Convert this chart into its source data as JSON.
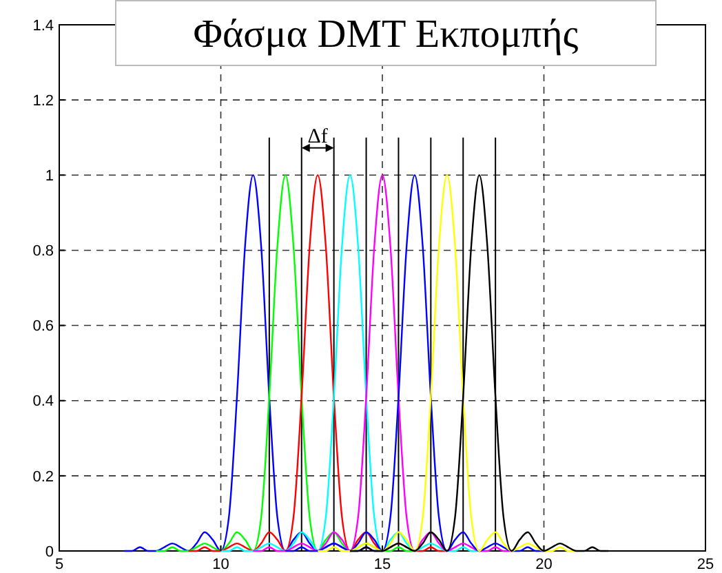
{
  "chart_data": {
    "type": "line",
    "title": "Φάσμα DMT Εκπομπής",
    "xlim": [
      5,
      25
    ],
    "ylim": [
      0,
      1.4
    ],
    "xticks": [
      5,
      10,
      15,
      20,
      25
    ],
    "yticks": [
      0,
      0.2,
      0.4,
      0.6,
      0.8,
      1,
      1.2,
      1.4
    ],
    "grid": true,
    "line_style": "solid",
    "marker": "none",
    "annotations": [
      "Δf"
    ],
    "series": [
      {
        "color": "#0000ff",
        "x": [
          7,
          7.25,
          7.5,
          7.75,
          8,
          8.25,
          8.5,
          8.75,
          9,
          9.25,
          9.5,
          9.75,
          10,
          10.25,
          10.5,
          10.75,
          11,
          11.25,
          11.5,
          11.75,
          12,
          12.25,
          12.5,
          12.75,
          13,
          13.25,
          13.5,
          13.75,
          14,
          14.25,
          14.5,
          14.75,
          15
        ],
        "values": [
          0,
          0,
          0.01,
          0,
          0,
          0.01,
          0.02,
          0.01,
          0,
          0.02,
          0.05,
          0.03,
          0,
          0.09,
          0.41,
          0.81,
          1,
          0.81,
          0.41,
          0.09,
          0,
          0.03,
          0.05,
          0.02,
          0,
          0.01,
          0.02,
          0.01,
          0,
          0,
          0.01,
          0,
          0
        ]
      },
      {
        "color": "#00ff00",
        "x": [
          8,
          8.25,
          8.5,
          8.75,
          9,
          9.25,
          9.5,
          9.75,
          10,
          10.25,
          10.5,
          10.75,
          11,
          11.25,
          11.5,
          11.75,
          12,
          12.25,
          12.5,
          12.75,
          13,
          13.25,
          13.5,
          13.75,
          14,
          14.25,
          14.5,
          14.75,
          15,
          15.25,
          15.5,
          15.75,
          16
        ],
        "values": [
          0,
          0,
          0.01,
          0,
          0,
          0.01,
          0.02,
          0.01,
          0,
          0.02,
          0.05,
          0.03,
          0,
          0.09,
          0.41,
          0.81,
          1,
          0.81,
          0.41,
          0.09,
          0,
          0.03,
          0.05,
          0.02,
          0,
          0.01,
          0.02,
          0.01,
          0,
          0,
          0.01,
          0,
          0
        ]
      },
      {
        "color": "#ff0000",
        "x": [
          9,
          9.25,
          9.5,
          9.75,
          10,
          10.25,
          10.5,
          10.75,
          11,
          11.25,
          11.5,
          11.75,
          12,
          12.25,
          12.5,
          12.75,
          13,
          13.25,
          13.5,
          13.75,
          14,
          14.25,
          14.5,
          14.75,
          15,
          15.25,
          15.5,
          15.75,
          16,
          16.25,
          16.5,
          16.75,
          17
        ],
        "values": [
          0,
          0,
          0.01,
          0,
          0,
          0.01,
          0.02,
          0.01,
          0,
          0.02,
          0.05,
          0.03,
          0,
          0.09,
          0.41,
          0.81,
          1,
          0.81,
          0.41,
          0.09,
          0,
          0.03,
          0.05,
          0.02,
          0,
          0.01,
          0.02,
          0.01,
          0,
          0,
          0.01,
          0,
          0
        ]
      },
      {
        "color": "#00ffff",
        "x": [
          10,
          10.25,
          10.5,
          10.75,
          11,
          11.25,
          11.5,
          11.75,
          12,
          12.25,
          12.5,
          12.75,
          13,
          13.25,
          13.5,
          13.75,
          14,
          14.25,
          14.5,
          14.75,
          15,
          15.25,
          15.5,
          15.75,
          16,
          16.25,
          16.5,
          16.75,
          17,
          17.25,
          17.5,
          17.75,
          18
        ],
        "values": [
          0,
          0,
          0.01,
          0,
          0,
          0.01,
          0.02,
          0.01,
          0,
          0.02,
          0.05,
          0.03,
          0,
          0.09,
          0.41,
          0.81,
          1,
          0.81,
          0.41,
          0.09,
          0,
          0.03,
          0.05,
          0.02,
          0,
          0.01,
          0.02,
          0.01,
          0,
          0,
          0.01,
          0,
          0
        ]
      },
      {
        "color": "#ff00ff",
        "x": [
          11,
          11.25,
          11.5,
          11.75,
          12,
          12.25,
          12.5,
          12.75,
          13,
          13.25,
          13.5,
          13.75,
          14,
          14.25,
          14.5,
          14.75,
          15,
          15.25,
          15.5,
          15.75,
          16,
          16.25,
          16.5,
          16.75,
          17,
          17.25,
          17.5,
          17.75,
          18,
          18.25,
          18.5,
          18.75,
          19
        ],
        "values": [
          0,
          0,
          0.01,
          0,
          0,
          0.01,
          0.02,
          0.01,
          0,
          0.02,
          0.05,
          0.03,
          0,
          0.09,
          0.41,
          0.81,
          1,
          0.81,
          0.41,
          0.09,
          0,
          0.03,
          0.05,
          0.02,
          0,
          0.01,
          0.02,
          0.01,
          0,
          0,
          0.01,
          0,
          0
        ]
      },
      {
        "color": "#0000ff",
        "x": [
          12,
          12.25,
          12.5,
          12.75,
          13,
          13.25,
          13.5,
          13.75,
          14,
          14.25,
          14.5,
          14.75,
          15,
          15.25,
          15.5,
          15.75,
          16,
          16.25,
          16.5,
          16.75,
          17,
          17.25,
          17.5,
          17.75,
          18,
          18.25,
          18.5,
          18.75,
          19,
          19.25,
          19.5,
          19.75,
          20
        ],
        "values": [
          0,
          0,
          0.01,
          0,
          0,
          0.01,
          0.02,
          0.01,
          0,
          0.02,
          0.05,
          0.03,
          0,
          0.09,
          0.41,
          0.81,
          1,
          0.81,
          0.41,
          0.09,
          0,
          0.03,
          0.05,
          0.02,
          0,
          0.01,
          0.02,
          0.01,
          0,
          0,
          0.01,
          0,
          0
        ]
      },
      {
        "color": "#ffff00",
        "x": [
          13,
          13.25,
          13.5,
          13.75,
          14,
          14.25,
          14.5,
          14.75,
          15,
          15.25,
          15.5,
          15.75,
          16,
          16.25,
          16.5,
          16.75,
          17,
          17.25,
          17.5,
          17.75,
          18,
          18.25,
          18.5,
          18.75,
          19,
          19.25,
          19.5,
          19.75,
          20,
          20.25,
          20.5,
          20.75,
          21
        ],
        "values": [
          0,
          0,
          0.01,
          0,
          0,
          0.01,
          0.02,
          0.01,
          0,
          0.02,
          0.05,
          0.03,
          0,
          0.09,
          0.41,
          0.81,
          1,
          0.81,
          0.41,
          0.09,
          0,
          0.03,
          0.05,
          0.02,
          0,
          0.01,
          0.02,
          0.01,
          0,
          0,
          0.01,
          0,
          0
        ]
      },
      {
        "color": "#000000",
        "x": [
          14,
          14.25,
          14.5,
          14.75,
          15,
          15.25,
          15.5,
          15.75,
          16,
          16.25,
          16.5,
          16.75,
          17,
          17.25,
          17.5,
          17.75,
          18,
          18.25,
          18.5,
          18.75,
          19,
          19.25,
          19.5,
          19.75,
          20,
          20.25,
          20.5,
          20.75,
          21,
          21.25,
          21.5,
          21.75,
          22
        ],
        "values": [
          0,
          0,
          0.01,
          0,
          0,
          0.01,
          0.02,
          0.01,
          0,
          0.02,
          0.05,
          0.03,
          0,
          0.09,
          0.41,
          0.81,
          1,
          0.81,
          0.41,
          0.09,
          0,
          0.03,
          0.05,
          0.02,
          0,
          0.01,
          0.02,
          0.01,
          0,
          0,
          0.01,
          0,
          0
        ]
      },
      {
        "type": "bar",
        "color": "#000000",
        "x": [
          11.5,
          12.5,
          13.5,
          14.5,
          15.5,
          16.5,
          17.5,
          18.5
        ],
        "values": [
          1.1,
          1.1,
          1.1,
          1.1,
          1.1,
          1.1,
          1.1,
          1.1
        ]
      }
    ]
  }
}
